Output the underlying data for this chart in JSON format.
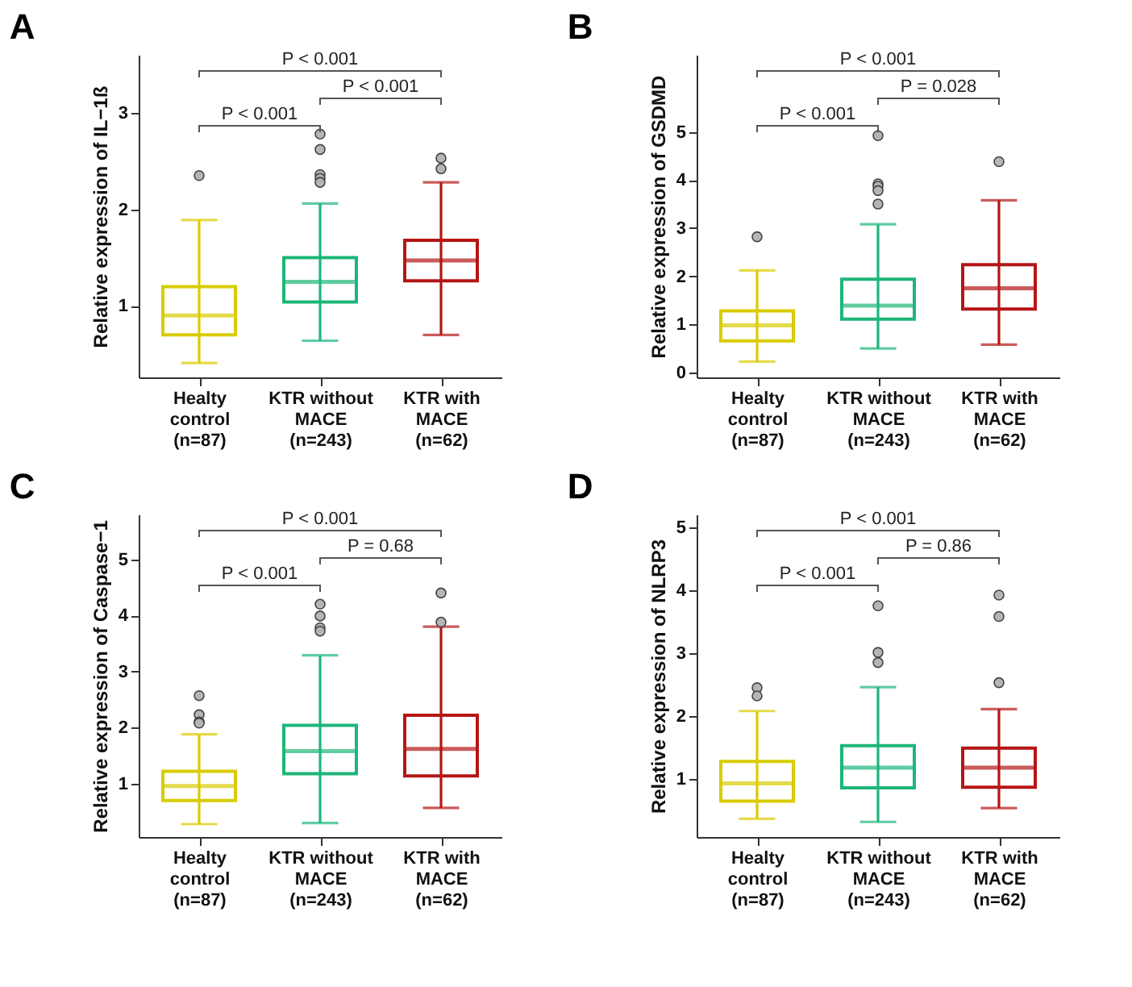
{
  "chart_data": [
    {
      "type": "box",
      "title": "A",
      "ylabel": "Relative expression of IL−1ß",
      "categories": [
        "Healty\ncontrol\n(n=87)",
        "KTR without\nMACE\n(n=243)",
        "KTR with\nMACE\n(n=62)"
      ],
      "colors": [
        "#d9cc00",
        "#1db67a",
        "#b51515"
      ],
      "ylim": [
        0.26,
        3.6
      ],
      "yticks": [
        1,
        2,
        3
      ],
      "boxes": [
        {
          "low": 0.41,
          "q1": 0.7,
          "median": 0.9,
          "q3": 1.2,
          "high": 1.89,
          "outliers": [
            2.35
          ]
        },
        {
          "low": 0.64,
          "q1": 1.04,
          "median": 1.25,
          "q3": 1.5,
          "high": 2.06,
          "outliers": [
            2.62,
            2.78,
            2.36,
            2.32,
            2.28
          ]
        },
        {
          "low": 0.7,
          "q1": 1.26,
          "median": 1.47,
          "q3": 1.68,
          "high": 2.28,
          "outliers": [
            2.53,
            2.42
          ]
        }
      ],
      "annotations": [
        "P < 0.001",
        "P < 0.001",
        "P < 0.001"
      ]
    },
    {
      "type": "box",
      "title": "B",
      "ylabel": "Relative expression of GSDMD",
      "categories": [
        "Healty\ncontrol\n(n=87)",
        "KTR without\nMACE\n(n=243)",
        "KTR with\nMACE\n(n=62)"
      ],
      "colors": [
        "#d9cc00",
        "#1db67a",
        "#b51515"
      ],
      "ylim": [
        -0.1,
        6.6
      ],
      "yticks": [
        0,
        1,
        2,
        3,
        4,
        5
      ],
      "boxes": [
        {
          "low": 0.23,
          "q1": 0.66,
          "median": 0.98,
          "q3": 1.28,
          "high": 2.12,
          "outliers": [
            2.82
          ]
        },
        {
          "low": 0.5,
          "q1": 1.11,
          "median": 1.39,
          "q3": 1.94,
          "high": 3.08,
          "outliers": [
            4.92,
            3.92,
            3.87,
            3.78,
            3.5
          ]
        },
        {
          "low": 0.58,
          "q1": 1.32,
          "median": 1.75,
          "q3": 2.24,
          "high": 3.58,
          "outliers": [
            4.38
          ]
        }
      ],
      "annotations": [
        "P < 0.001",
        "P = 0.028",
        "P < 0.001"
      ]
    },
    {
      "type": "box",
      "title": "C",
      "ylabel": "Relative expression of Caspase−1",
      "categories": [
        "Healty\ncontrol\n(n=87)",
        "KTR without\nMACE\n(n=243)",
        "KTR with\nMACE\n(n=62)"
      ],
      "colors": [
        "#d9cc00",
        "#1db67a",
        "#b51515"
      ],
      "ylim": [
        0.05,
        5.8
      ],
      "yticks": [
        1,
        2,
        3,
        4,
        5
      ],
      "boxes": [
        {
          "low": 0.28,
          "q1": 0.7,
          "median": 0.96,
          "q3": 1.22,
          "high": 1.88,
          "outliers": [
            2.57,
            2.23,
            2.1,
            2.08
          ]
        },
        {
          "low": 0.3,
          "q1": 1.18,
          "median": 1.58,
          "q3": 2.04,
          "high": 3.29,
          "outliers": [
            4.2,
            3.99,
            3.78,
            3.72
          ]
        },
        {
          "low": 0.57,
          "q1": 1.14,
          "median": 1.62,
          "q3": 2.22,
          "high": 3.8,
          "outliers": [
            4.4,
            3.88
          ]
        }
      ],
      "annotations": [
        "P < 0.001",
        "P = 0.68",
        "P < 0.001"
      ]
    },
    {
      "type": "box",
      "title": "D",
      "ylabel": "Relative expression of NLRP3",
      "categories": [
        "Healty\ncontrol\n(n=87)",
        "KTR without\nMACE\n(n=243)",
        "KTR with\nMACE\n(n=62)"
      ],
      "colors": [
        "#d9cc00",
        "#1db67a",
        "#b51515"
      ],
      "ylim": [
        0.08,
        5.2
      ],
      "yticks": [
        1,
        2,
        3,
        4,
        5
      ],
      "boxes": [
        {
          "low": 0.37,
          "q1": 0.65,
          "median": 0.93,
          "q3": 1.28,
          "high": 2.08,
          "outliers": [
            2.45,
            2.32
          ]
        },
        {
          "low": 0.32,
          "q1": 0.86,
          "median": 1.18,
          "q3": 1.53,
          "high": 2.46,
          "outliers": [
            3.75,
            3.01,
            2.85
          ]
        },
        {
          "low": 0.54,
          "q1": 0.87,
          "median": 1.18,
          "q3": 1.49,
          "high": 2.11,
          "outliers": [
            3.92,
            3.58,
            2.53
          ]
        }
      ],
      "annotations": [
        "P < 0.001",
        "P = 0.86",
        "P < 0.001"
      ]
    }
  ]
}
